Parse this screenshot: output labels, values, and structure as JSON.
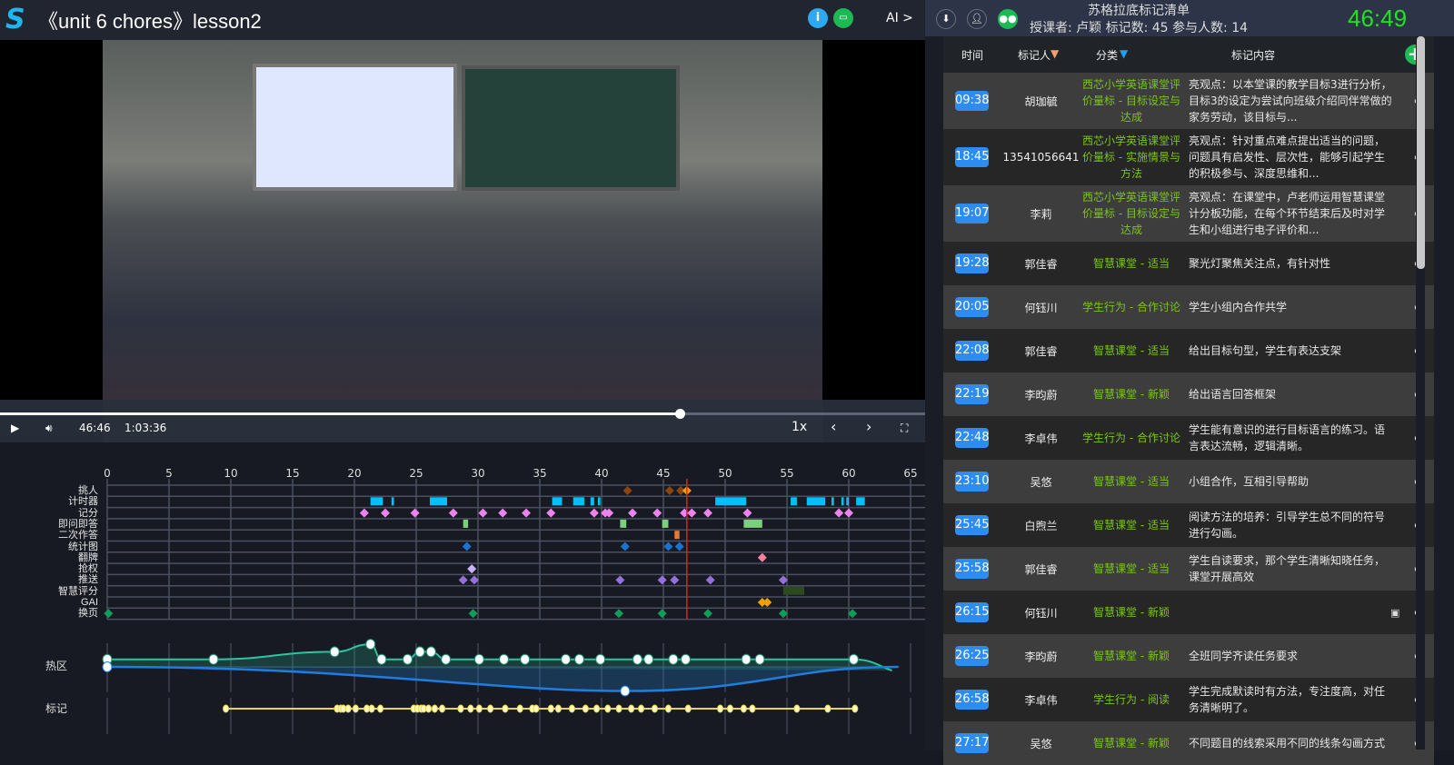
{
  "header": {
    "title": "《unit 6 chores》lesson2",
    "ai_label": "AI >",
    "logo": "S"
  },
  "icons": {
    "info": "info-icon",
    "chat": "chat-icon"
  },
  "player": {
    "current_time": "46:46",
    "duration": "1:03:36",
    "speed": "1x",
    "progress": 0.735
  },
  "timeline": {
    "ticks": [
      "0",
      "5",
      "10",
      "15",
      "20",
      "25",
      "30",
      "35",
      "40",
      "45",
      "50",
      "55",
      "60",
      "65"
    ],
    "tick_values": [
      0,
      5,
      10,
      15,
      20,
      25,
      30,
      35,
      40,
      45,
      50,
      55,
      60,
      65
    ],
    "current_minute": 46.9,
    "rows": [
      {
        "label": "挑人",
        "type": "diamond",
        "color": "#8b4513",
        "points": [
          42.1,
          45.5,
          46.4
        ],
        "extra": [
          {
            "m": 46.9,
            "color": "#f0a000"
          }
        ]
      },
      {
        "label": "计时器",
        "type": "bar",
        "color": "#00bfff",
        "spans": [
          [
            21.3,
            22.3
          ],
          [
            23.0,
            23.2
          ],
          [
            26.1,
            27.5
          ],
          [
            36.0,
            36.8
          ],
          [
            37.7,
            38.6
          ],
          [
            39.1,
            39.4
          ],
          [
            39.7,
            39.9
          ],
          [
            49.2,
            51.7
          ],
          [
            55.3,
            55.8
          ],
          [
            56.6,
            58.1
          ],
          [
            58.6,
            58.8
          ],
          [
            59.4,
            59.6
          ],
          [
            59.8,
            60.0
          ],
          [
            60.6,
            61.3
          ]
        ]
      },
      {
        "label": "记分",
        "type": "diamond",
        "color": "#ee82ee",
        "points": [
          20.8,
          22.5,
          24.9,
          28,
          30.4,
          32,
          33.9,
          35.9,
          39.4,
          40.3,
          40.6,
          42.5,
          44.5,
          46.7,
          47.3,
          48.6,
          51.8,
          59.2,
          60.0
        ]
      },
      {
        "label": "即问即答",
        "type": "bar",
        "color": "#7ccf7c",
        "spans": [
          [
            28.8,
            29.2
          ],
          [
            41.5,
            42.0
          ],
          [
            44.9,
            45.4
          ],
          [
            51.5,
            53.0
          ]
        ]
      },
      {
        "label": "二次作答",
        "type": "bar",
        "color": "#e07b3c",
        "spans": [
          [
            45.9,
            46.3
          ]
        ]
      },
      {
        "label": "统计图",
        "type": "diamond",
        "color": "#1a73d0",
        "points": [
          29.1,
          41.9,
          45.4,
          46.3
        ]
      },
      {
        "label": "翻牌",
        "type": "diamond",
        "color": "#ff7fa0",
        "points": [
          53.0
        ]
      },
      {
        "label": "抢权",
        "type": "diamond",
        "color": "#c9b3ff",
        "points": [
          29.5
        ]
      },
      {
        "label": "推送",
        "type": "diamond",
        "color": "#9370db",
        "points": [
          28.8,
          29.7,
          41.5,
          44.9,
          45.9,
          48.8,
          54.7
        ]
      },
      {
        "label": "智慧评分",
        "type": "bar",
        "color": "#2d4a1e",
        "spans": [
          [
            54.7,
            56.4
          ]
        ]
      },
      {
        "label": "GAI",
        "type": "diamond",
        "color": "#f0a000",
        "points": [
          53.0,
          53.4
        ]
      },
      {
        "label": "换页",
        "type": "diamond",
        "color": "#0f9d58",
        "points": [
          0.1,
          29.6,
          41.4,
          44.9,
          48.6,
          54.7,
          60.3
        ]
      }
    ],
    "heat_label": "热区",
    "heat_upper": [
      [
        0,
        1
      ],
      [
        8.6,
        1
      ],
      [
        18.4,
        2
      ],
      [
        21.3,
        3
      ],
      [
        22.2,
        1
      ],
      [
        24.3,
        1
      ],
      [
        25.3,
        2
      ],
      [
        26.2,
        2
      ],
      [
        27.4,
        1
      ],
      [
        30.1,
        1
      ],
      [
        32.1,
        1
      ],
      [
        33.8,
        1
      ],
      [
        37.1,
        1
      ],
      [
        38.2,
        1
      ],
      [
        39.9,
        1
      ],
      [
        42.9,
        1
      ],
      [
        43.8,
        1
      ],
      [
        45.8,
        1
      ],
      [
        46.8,
        1
      ],
      [
        51.7,
        1
      ],
      [
        52.8,
        1
      ],
      [
        60.4,
        1
      ]
    ],
    "heat_lower_min": [
      41.9,
      -3.2
    ],
    "marks_label": "标记",
    "marks": [
      9.6,
      18.6,
      18.9,
      19.1,
      19.5,
      20.1,
      21.0,
      21.4,
      22.1,
      24.8,
      25.1,
      25.4,
      25.6,
      26.0,
      26.5,
      27.1,
      28.6,
      29.4,
      30.1,
      31.0,
      32.2,
      33.4,
      34.4,
      34.7,
      35.9,
      36.5,
      37.6,
      38.7,
      39.6,
      40.5,
      41.4,
      42.4,
      43.2,
      44.3,
      45.4,
      47.0,
      49.6,
      50.4,
      51.5,
      52.2,
      55.8,
      58.3,
      60.5
    ]
  },
  "panel": {
    "title": "苏格拉底标记清单",
    "subtitle": "授课者: 卢颖 标记数: 45 参与人数: 14",
    "clock": "46:49",
    "columns": {
      "time": "时间",
      "marker": "标记人",
      "category": "分类",
      "content": "标记内容"
    },
    "add_label": "+",
    "filter_marker_color": "#f0a070",
    "filter_category_color": "#1fa0f0",
    "rows": [
      {
        "time": "09:38",
        "name": "胡珈毓",
        "cat": "西芯小学英语课堂评价量标 - 目标设定与达成",
        "content": "亮观点：以本堂课的教学目标3进行分析，目标3的设定为尝试向班级介绍同伴常做的家务劳动，该目标与..."
      },
      {
        "time": "18:45",
        "name": "13541056641",
        "cat": "西芯小学英语课堂评价量标 - 实施情景与方法",
        "content": "亮观点：针对重点难点提出适当的问题，问题具有启发性、层次性，能够引起学生的积极参与、深度思维和..."
      },
      {
        "time": "19:07",
        "name": "李莉",
        "cat": "西芯小学英语课堂评价量标 - 目标设定与达成",
        "content": "亮观点：在课堂中，卢老师运用智慧课堂计分板功能，在每个环节结束后及时对学生和小组进行电子评价和..."
      },
      {
        "time": "19:28",
        "name": "郭佳睿",
        "cat": "智慧课堂 - 适当",
        "content": "聚光灯聚焦关注点，有针对性"
      },
      {
        "time": "20:05",
        "name": "何钰川",
        "cat": "学生行为 - 合作讨论",
        "content": "学生小组内合作共学"
      },
      {
        "time": "22:08",
        "name": "郭佳睿",
        "cat": "智慧课堂 - 适当",
        "content": "给出目标句型，学生有表达支架"
      },
      {
        "time": "22:19",
        "name": "李昀蔚",
        "cat": "智慧课堂 - 新颖",
        "content": "给出语言回答框架"
      },
      {
        "time": "22:48",
        "name": "李卓伟",
        "cat": "学生行为 - 合作讨论",
        "content": "学生能有意识的进行目标语言的练习。语言表达流畅，逻辑清晰。"
      },
      {
        "time": "23:10",
        "name": "吴悠",
        "cat": "智慧课堂 - 适当",
        "content": "小组合作，互相引导帮助"
      },
      {
        "time": "25:45",
        "name": "白煦兰",
        "cat": "智慧课堂 - 适当",
        "content": "阅读方法的培养：引导学生总不同的符号进行勾画。"
      },
      {
        "time": "25:58",
        "name": "郭佳睿",
        "cat": "智慧课堂 - 适当",
        "content": "学生自读要求，那个学生清晰知晓任务，课堂开展高效"
      },
      {
        "time": "26:15",
        "name": "何钰川",
        "cat": "智慧课堂 - 新颖",
        "content": "",
        "image": true
      },
      {
        "time": "26:25",
        "name": "李昀蔚",
        "cat": "智慧课堂 - 新颖",
        "content": "全班同学齐读任务要求"
      },
      {
        "time": "26:58",
        "name": "李卓伟",
        "cat": "学生行为 - 阅读",
        "content": "学生完成默读时有方法，专注度高，对任务清晰明了。"
      },
      {
        "time": "27:17",
        "name": "吴悠",
        "cat": "智慧课堂 - 新颖",
        "content": "不同题目的线索采用不同的线条勾画方式"
      }
    ]
  }
}
